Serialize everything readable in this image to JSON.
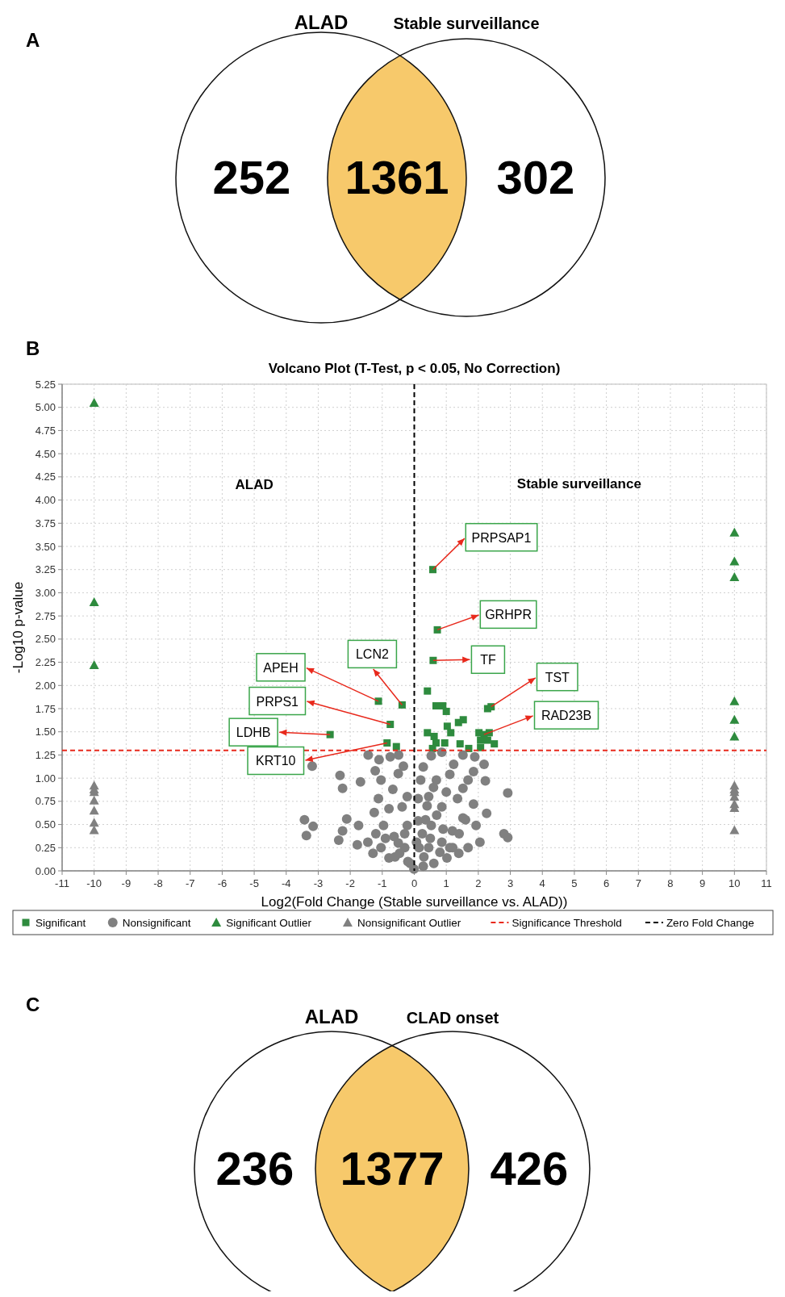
{
  "chart_data": [
    {
      "type": "other",
      "title": "A",
      "categories": [
        "ALAD",
        null,
        "Stable surveillance"
      ],
      "values": [
        252,
        1361,
        302
      ],
      "colors": [
        "#ffffff",
        "#f7c96b",
        "#ffffff"
      ],
      "data_labels": true
    },
    {
      "type": "scatter",
      "title": "Volcano Plot (T-Test, p < 0.05, No Correction)",
      "xlabel": "Log2(Fold Change  (Stable surveillance vs. ALAD))",
      "ylabel": "-Log10 p-value",
      "xlim": [
        -11,
        11
      ],
      "xticks": [
        -11,
        -10,
        -9,
        -8,
        -7,
        -6,
        -5,
        -4,
        -3,
        -2,
        -1,
        0,
        1,
        2,
        3,
        4,
        5,
        6,
        7,
        8,
        9,
        10,
        11
      ],
      "ylim": [
        0,
        5.25
      ],
      "yticks": [
        {
          "value": 0,
          "label": "0.00"
        },
        {
          "value": 0.25,
          "label": "0.25"
        },
        {
          "value": 0.5,
          "label": "0.50"
        },
        {
          "value": 0.75,
          "label": "0.75"
        },
        {
          "value": 1,
          "label": "1.00"
        },
        {
          "value": 1.25,
          "label": "1.25"
        },
        {
          "value": 1.5,
          "label": "1.50"
        },
        {
          "value": 1.75,
          "label": "1.75"
        },
        {
          "value": 2,
          "label": "2.00"
        },
        {
          "value": 2.25,
          "label": "2.25"
        },
        {
          "value": 2.5,
          "label": "2.50"
        },
        {
          "value": 2.75,
          "label": "2.75"
        },
        {
          "value": 3,
          "label": "3.00"
        },
        {
          "value": 3.25,
          "label": "3.25"
        },
        {
          "value": 3.5,
          "label": "3.50"
        },
        {
          "value": 3.75,
          "label": "3.75"
        },
        {
          "value": 4,
          "label": "4.00"
        },
        {
          "value": 4.25,
          "label": "4.25"
        },
        {
          "value": 4.5,
          "label": "4.50"
        },
        {
          "value": 4.75,
          "label": "4.75"
        },
        {
          "value": 5,
          "label": "5.00"
        },
        {
          "value": 5.25,
          "label": "5.25"
        }
      ],
      "grid": true,
      "legend": "bottom",
      "series": [
        {
          "name": "Significant",
          "color": "#2e8b3e",
          "marker": "square",
          "x": [
            -1.12,
            -0.38,
            -0.75,
            -2.63,
            -0.85,
            -0.56,
            0.58,
            0.72,
            0.59,
            0.41,
            0.68,
            0.89,
            1.0,
            1.38,
            1.53,
            1.03,
            1.14,
            0.41,
            0.62,
            0.68,
            0.95,
            1.43,
            0.57,
            1.7,
            2.29,
            2.4,
            2.02,
            2.18,
            2.34,
            2.07,
            2.29,
            2.5,
            2.07
          ],
          "values": [
            1.83,
            1.79,
            1.58,
            1.47,
            1.38,
            1.34,
            3.25,
            2.6,
            2.27,
            1.94,
            1.78,
            1.78,
            1.72,
            1.6,
            1.63,
            1.56,
            1.49,
            1.49,
            1.45,
            1.38,
            1.38,
            1.37,
            1.32,
            1.32,
            1.75,
            1.77,
            1.49,
            1.47,
            1.49,
            1.41,
            1.41,
            1.37,
            1.33
          ]
        },
        {
          "name": "Nonsignificant",
          "color": "#808080",
          "marker": "circle",
          "x": [
            -3.19,
            -2.32,
            -2.24,
            -1.68,
            -1.44,
            -1.1,
            -0.75,
            -0.49,
            -1.22,
            -1.04,
            -0.5,
            -0.34,
            -0.67,
            -0.22,
            -1.12,
            -3.43,
            -3.16,
            -3.37,
            -2.36,
            -2.24,
            -1.78,
            -2.11,
            -1.45,
            -1.74,
            -1.25,
            -0.79,
            -0.96,
            -1.04,
            -0.63,
            -0.38,
            -0.46,
            -0.13,
            -0.01,
            2.92,
            2.8,
            2.92,
            2.05,
            2.26,
            2.22,
            2.18,
            1.89,
            1.52,
            1.23,
            1.68,
            1.85,
            1.93,
            1.68,
            1.39,
            1.02,
            0.61,
            0.28,
            0.53,
            0.86,
            0.28,
            0.2,
            0.12,
            0.12,
            0.07,
            0.69,
            1.11,
            1.35,
            1.52,
            1.19,
            0.53,
            0.86,
            0.45,
            0.86,
            0.45,
            -0.22,
            -0.3,
            -0.79,
            -1.29,
            1.85,
            1.52,
            1.11,
            0.3,
            0.5,
            0.7,
            0.9,
            1.2,
            0.4,
            0.6,
            1.0,
            -0.2,
            -0.5,
            -0.6,
            -0.9,
            0.15,
            0.25,
            0.35,
            0.8,
            1.4,
            1.6,
            -0.3,
            -1.2
          ],
          "values": [
            1.13,
            1.03,
            0.89,
            0.96,
            1.25,
            1.2,
            1.23,
            1.25,
            1.08,
            0.98,
            1.05,
            1.13,
            0.88,
            0.8,
            0.78,
            0.55,
            0.48,
            0.38,
            0.33,
            0.43,
            0.28,
            0.56,
            0.31,
            0.49,
            0.63,
            0.67,
            0.49,
            0.25,
            0.37,
            0.69,
            0.19,
            0.08,
            0.02,
            0.84,
            0.4,
            0.36,
            0.31,
            0.62,
            0.97,
            1.15,
            1.23,
            1.25,
            1.15,
            0.98,
            0.72,
            0.49,
            0.25,
            0.19,
            0.14,
            0.08,
            0.05,
            1.24,
            1.28,
            1.12,
            0.98,
            0.78,
            0.54,
            0.31,
            0.98,
            1.04,
            0.78,
            0.57,
            0.43,
            0.49,
            0.69,
            0.8,
            0.31,
            0.25,
            0.49,
            0.25,
            0.14,
            0.19,
            1.07,
            0.89,
            0.25,
            0.15,
            0.35,
            0.6,
            0.45,
            0.25,
            0.7,
            0.9,
            0.85,
            0.1,
            0.3,
            0.15,
            0.35,
            0.25,
            0.4,
            0.55,
            0.2,
            0.4,
            0.55,
            0.4,
            0.4
          ]
        },
        {
          "name": "Significant Outlier",
          "color": "#2e8b3e",
          "marker": "triangle",
          "x": [
            -10,
            -10,
            -10,
            10,
            10,
            10,
            10,
            10,
            10
          ],
          "values": [
            5.05,
            2.9,
            2.22,
            3.65,
            3.34,
            3.17,
            1.83,
            1.63,
            1.45
          ]
        },
        {
          "name": "Nonsignificant Outlier",
          "color": "#808080",
          "marker": "triangle",
          "x": [
            -10,
            -10,
            -10,
            -10,
            -10,
            -10,
            -10,
            10,
            10,
            10,
            10,
            10,
            10,
            10
          ],
          "values": [
            0.92,
            0.88,
            0.85,
            0.76,
            0.65,
            0.52,
            0.44,
            0.92,
            0.88,
            0.85,
            0.8,
            0.72,
            0.68,
            0.44
          ]
        }
      ],
      "ref_lines": [
        {
          "axis": "y",
          "value": 1.3,
          "label": "Significance Threshold",
          "color": "#e8291c",
          "line_style": "dashed"
        },
        {
          "axis": "x",
          "value": 0,
          "label": "Zero Fold Change",
          "color": "#000000",
          "line_style": "dashed"
        }
      ],
      "annotations": [
        "B",
        "ALAD",
        "Stable surveillance",
        {
          "text": "APEH",
          "x": -1.12,
          "y": 1.83
        },
        {
          "text": "LCN2",
          "x": -0.38,
          "y": 1.79
        },
        {
          "text": "PRPS1",
          "x": -0.75,
          "y": 1.58
        },
        {
          "text": "LDHB",
          "x": -2.63,
          "y": 1.47
        },
        {
          "text": "KRT10",
          "x": -0.85,
          "y": 1.38
        },
        {
          "text": "PRPSAP1",
          "x": 0.58,
          "y": 3.25
        },
        {
          "text": "GRHPR",
          "x": 0.72,
          "y": 2.6
        },
        {
          "text": "TF",
          "x": 0.59,
          "y": 2.27
        },
        {
          "text": "TST",
          "x": 2.4,
          "y": 1.77
        },
        {
          "text": "RAD23B",
          "x": 2.18,
          "y": 1.47
        }
      ]
    },
    {
      "type": "other",
      "title": "C",
      "categories": [
        "ALAD",
        null,
        "CLAD onset"
      ],
      "values": [
        236,
        1377,
        426
      ],
      "colors": [
        "#ffffff",
        "#f7c96b",
        "#ffffff"
      ],
      "data_labels": true
    }
  ]
}
